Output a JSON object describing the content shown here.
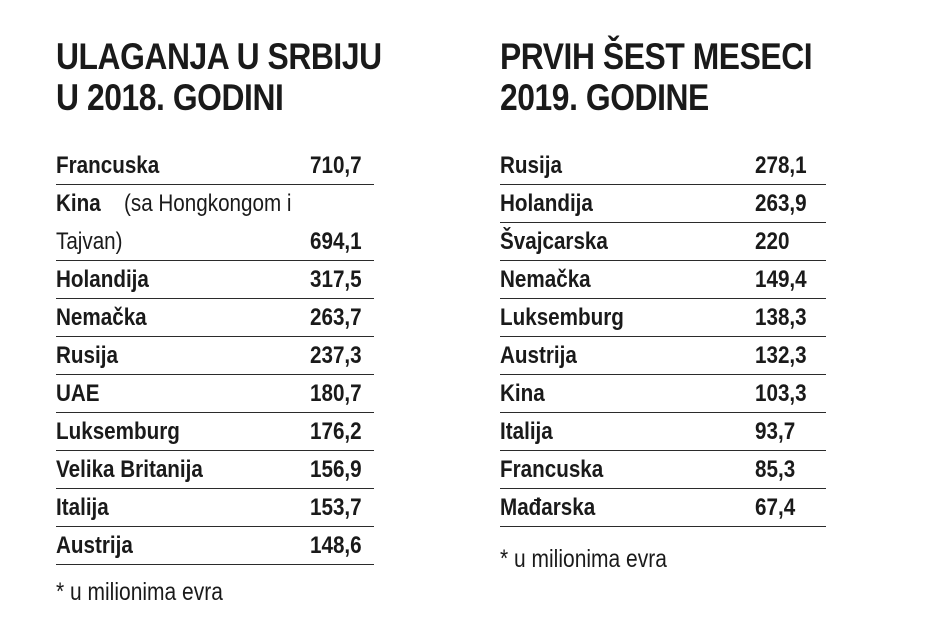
{
  "left": {
    "title_line1": "ULAGANJA U SRBIJU",
    "title_line2": "U 2018. GODINI",
    "rows": [
      {
        "country": "Francuska",
        "value": "710,7"
      },
      {
        "country": "Kina",
        "note_line1": "(sa Hongkongom i",
        "note_line2": "Tajvan)",
        "value": "694,1"
      },
      {
        "country": "Holandija",
        "value": "317,5"
      },
      {
        "country": "Nemačka",
        "value": "263,7"
      },
      {
        "country": "Rusija",
        "value": "237,3"
      },
      {
        "country": "UAE",
        "value": "180,7"
      },
      {
        "country": "Luksemburg",
        "value": "176,2"
      },
      {
        "country": "Velika Britanija",
        "value": "156,9"
      },
      {
        "country": "Italija",
        "value": "153,7"
      },
      {
        "country": "Austrija",
        "value": "148,6"
      }
    ],
    "footnote": "* u milionima evra"
  },
  "right": {
    "title_line1": "PRVIH ŠEST MESECI",
    "title_line2": "2019. GODINE",
    "rows": [
      {
        "country": "Rusija",
        "value": "278,1"
      },
      {
        "country": "Holandija",
        "value": "263,9"
      },
      {
        "country": "Švajcarska",
        "value": "220"
      },
      {
        "country": "Nemačka",
        "value": "149,4"
      },
      {
        "country": "Luksemburg",
        "value": "138,3"
      },
      {
        "country": "Austrija",
        "value": "132,3"
      },
      {
        "country": "Kina",
        "value": "103,3"
      },
      {
        "country": "Italija",
        "value": "93,7"
      },
      {
        "country": "Francuska",
        "value": "85,3"
      },
      {
        "country": "Mađarska",
        "value": "67,4"
      }
    ],
    "footnote": "* u milionima evra"
  }
}
